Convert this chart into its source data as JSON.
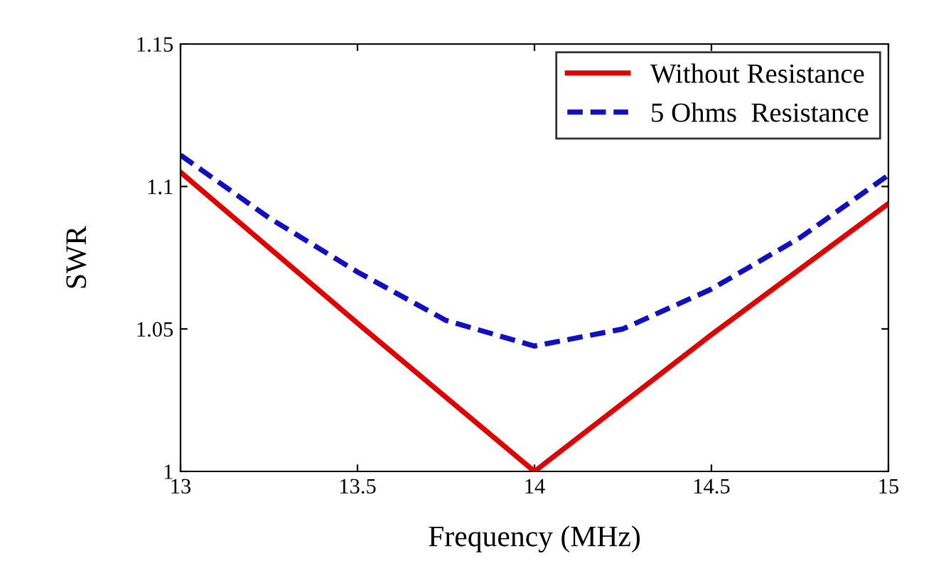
{
  "chart_data": {
    "type": "line",
    "xlabel": "Frequency (MHz)",
    "ylabel": "SWR",
    "xlim": [
      13,
      15
    ],
    "xticks": [
      13,
      13.5,
      14,
      14.5,
      15
    ],
    "ylim": [
      1,
      1.15
    ],
    "yticks": [
      1,
      1.05,
      1.1,
      1.15
    ],
    "grid": false,
    "legend": "top right",
    "marker": "none",
    "series": [
      {
        "name": "Without Resistance",
        "color": "#e00000",
        "line_style": "solid",
        "x": [
          13,
          13.5,
          14,
          14.5,
          15
        ],
        "values": [
          1.105,
          1.052,
          1.0,
          1.048,
          1.094
        ]
      },
      {
        "name": "5 Ohms  Resistance",
        "color": "#1010c0",
        "line_style": "dashed",
        "x": [
          13,
          13.25,
          13.5,
          13.75,
          14,
          14.25,
          14.5,
          14.75,
          15
        ],
        "values": [
          1.111,
          1.089,
          1.07,
          1.053,
          1.044,
          1.05,
          1.064,
          1.082,
          1.104
        ]
      }
    ]
  }
}
